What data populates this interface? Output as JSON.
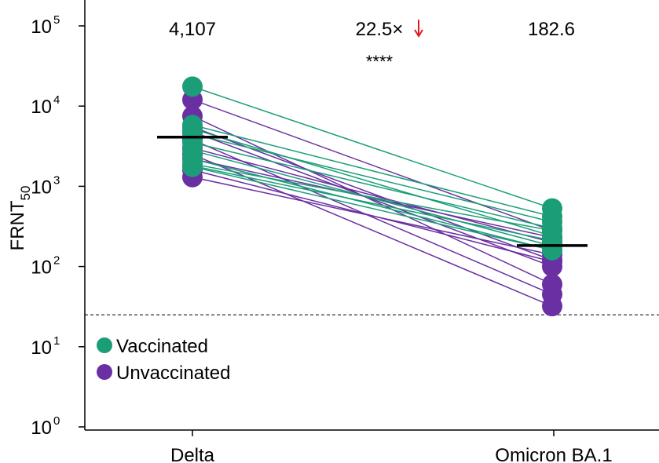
{
  "chart_data": {
    "type": "scatter",
    "subtype": "paired-dot-plot",
    "ylabel": "FRNT",
    "ylabel_subscript": "50",
    "yscale": "log",
    "ylim": [
      1,
      100000
    ],
    "y_ticks": [
      {
        "value": 1,
        "base": "10",
        "exp": "0"
      },
      {
        "value": 10,
        "base": "10",
        "exp": "1"
      },
      {
        "value": 100,
        "base": "10",
        "exp": "2"
      },
      {
        "value": 1000,
        "base": "10",
        "exp": "3"
      },
      {
        "value": 10000,
        "base": "10",
        "exp": "4"
      },
      {
        "value": 100000,
        "base": "10",
        "exp": "5"
      }
    ],
    "categories": [
      "Delta",
      "Omicron BA.1"
    ],
    "geometric_means": [
      4107,
      182.6
    ],
    "gmt_labels": [
      "4,107",
      "182.6"
    ],
    "fold_change_label": "22.5×",
    "fold_arrow": "↓",
    "significance": "****",
    "detection_limit": 25,
    "colors": {
      "vaccinated": "#1b9e77",
      "unvaccinated": "#6a2fa2",
      "arrow": "#e41a1c"
    },
    "legend": [
      {
        "label": "Vaccinated",
        "color": "#1b9e77"
      },
      {
        "label": "Unvaccinated",
        "color": "#6a2fa2"
      }
    ],
    "series": [
      {
        "name": "Vaccinated",
        "pairs": [
          [
            17500,
            530
          ],
          [
            5800,
            420
          ],
          [
            5200,
            240
          ],
          [
            3500,
            300
          ],
          [
            2800,
            180
          ],
          [
            2200,
            160
          ],
          [
            1900,
            280
          ],
          [
            1800,
            210
          ],
          [
            1750,
            160
          ],
          [
            4500,
            360
          ]
        ]
      },
      {
        "name": "Unvaccinated",
        "pairs": [
          [
            12000,
            280
          ],
          [
            7500,
            60
          ],
          [
            5500,
            120
          ],
          [
            4800,
            100
          ],
          [
            3800,
            45
          ],
          [
            3000,
            200
          ],
          [
            2500,
            32
          ],
          [
            1300,
            140
          ],
          [
            2200,
            230
          ],
          [
            1600,
            115
          ]
        ]
      }
    ]
  }
}
